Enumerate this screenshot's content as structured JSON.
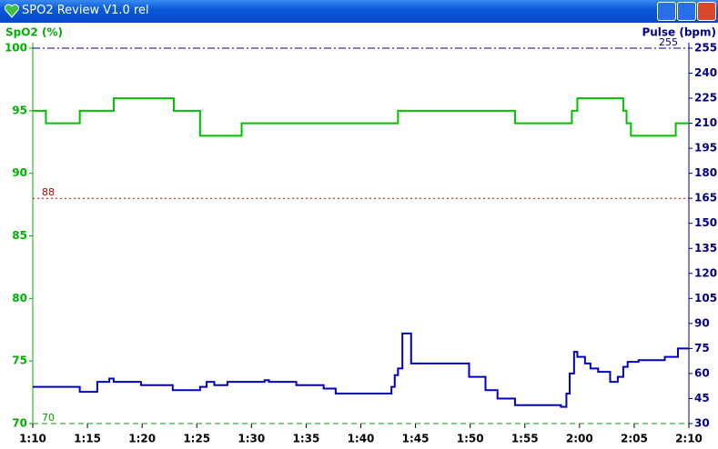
{
  "window_title": "SPO2 Review V1.0 rel",
  "chart_data": {
    "type": "line",
    "step": true,
    "y_label": "SpO2 (%)",
    "y2_label": "Pulse (bpm)",
    "xlim": [
      70,
      130
    ],
    "xticks": [
      {
        "value": 70,
        "label": "1:10"
      },
      {
        "value": 75,
        "label": "1:15"
      },
      {
        "value": 80,
        "label": "1:20"
      },
      {
        "value": 85,
        "label": "1:25"
      },
      {
        "value": 90,
        "label": "1:30"
      },
      {
        "value": 95,
        "label": "1:35"
      },
      {
        "value": 100,
        "label": "1:40"
      },
      {
        "value": 105,
        "label": "1:45"
      },
      {
        "value": 110,
        "label": "1:50"
      },
      {
        "value": 115,
        "label": "1:55"
      },
      {
        "value": 120,
        "label": "2:00"
      },
      {
        "value": 125,
        "label": "2:05"
      },
      {
        "value": 130,
        "label": "2:10"
      }
    ],
    "ylim": [
      70,
      100
    ],
    "yticks": [
      70,
      75,
      80,
      85,
      90,
      95,
      100
    ],
    "y_color": "#00b000",
    "y2lim": [
      30,
      255
    ],
    "y2ticks": [
      30,
      45,
      60,
      75,
      90,
      105,
      120,
      135,
      150,
      165,
      180,
      195,
      210,
      225,
      240,
      255
    ],
    "y2_color": "#000080",
    "reference_lines": [
      {
        "value": 88,
        "axis": "y",
        "color": "#c00000",
        "dash": "2,3"
      },
      {
        "value": 255,
        "axis": "y2",
        "color": "#000080",
        "dash": "8,3,2,3"
      },
      {
        "value": 70,
        "axis": "y",
        "color": "#00a000",
        "dash": "6,4"
      }
    ],
    "series": [
      {
        "name": "SpO2",
        "color": "#00c000",
        "x": [
          70,
          71.2,
          74.3,
          77.4,
          82.9,
          85.3,
          89.1,
          103.4,
          114.1,
          119.3,
          119.8,
          124,
          124.3,
          124.7,
          128.8,
          130
        ],
        "values": [
          95,
          94,
          95,
          96,
          95,
          93,
          94,
          95,
          94,
          95,
          96,
          95,
          94,
          93,
          94,
          94
        ]
      },
      {
        "name": "Pulse",
        "color": "#0000c0",
        "axis": "y2",
        "x": [
          70,
          74.3,
          75.9,
          77,
          77.4,
          79.9,
          82.8,
          85.3,
          85.9,
          86.6,
          87.8,
          91.2,
          91.6,
          94.1,
          96.6,
          97.7,
          102.8,
          103.1,
          103.4,
          103.8,
          104.6,
          109.9,
          111.4,
          112.5,
          114.1,
          118.3,
          118.8,
          119.1,
          119.5,
          119.8,
          120.5,
          121,
          121.7,
          122.8,
          123.5,
          124,
          124.4,
          125.4,
          127.8,
          129,
          130
        ],
        "values": [
          52,
          49,
          55,
          57,
          55,
          53,
          50,
          52,
          55,
          53,
          55,
          56,
          55,
          53,
          51,
          48,
          52,
          59,
          63,
          84,
          66,
          58,
          50,
          45,
          41,
          40,
          48,
          60,
          73,
          70,
          66,
          63,
          61,
          55,
          58,
          64,
          67,
          68,
          70,
          75,
          75
        ]
      }
    ]
  }
}
